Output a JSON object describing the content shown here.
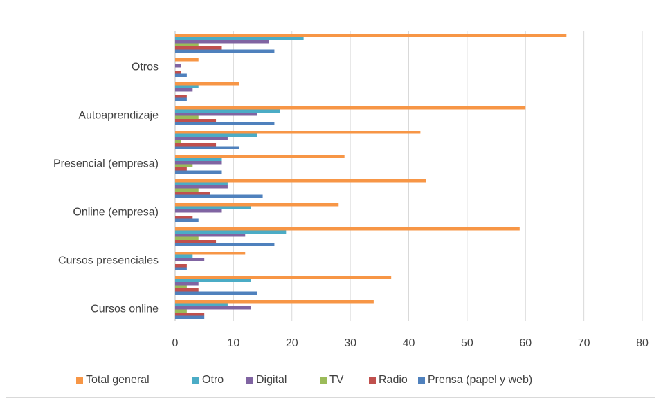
{
  "chart_data": {
    "type": "hbar",
    "categories": [
      "Cursos online",
      null,
      "Cursos presenciales",
      null,
      "Online (empresa)",
      null,
      "Presencial (empresa)",
      null,
      "Autoaprendizaje",
      null,
      "Otros",
      null
    ],
    "series": [
      {
        "name": "Total general",
        "color": "#f79646",
        "values": [
          34,
          37,
          12,
          59,
          28,
          43,
          29,
          42,
          60,
          11,
          4,
          67
        ]
      },
      {
        "name": "Otro",
        "color": "#4bacc6",
        "values": [
          9,
          13,
          3,
          19,
          13,
          9,
          8,
          14,
          18,
          4,
          0,
          22
        ]
      },
      {
        "name": "Digital",
        "color": "#8064a2",
        "values": [
          13,
          4,
          5,
          12,
          8,
          9,
          8,
          9,
          14,
          3,
          1,
          16
        ]
      },
      {
        "name": "TV",
        "color": "#9bbb59",
        "values": [
          2,
          2,
          0,
          4,
          0,
          4,
          3,
          1,
          4,
          0,
          0,
          4
        ]
      },
      {
        "name": "Radio",
        "color": "#c0504d",
        "values": [
          5,
          4,
          2,
          7,
          3,
          6,
          2,
          7,
          7,
          2,
          1,
          8
        ]
      },
      {
        "name": "Prensa (papel y web)",
        "color": "#4f81bd",
        "values": [
          5,
          14,
          2,
          17,
          4,
          15,
          8,
          11,
          17,
          2,
          2,
          17
        ]
      }
    ],
    "xlim": [
      0,
      80
    ],
    "xticks": [
      0,
      10,
      20,
      30,
      40,
      50,
      60,
      70,
      80
    ],
    "grid": true,
    "legend": "bottom"
  }
}
